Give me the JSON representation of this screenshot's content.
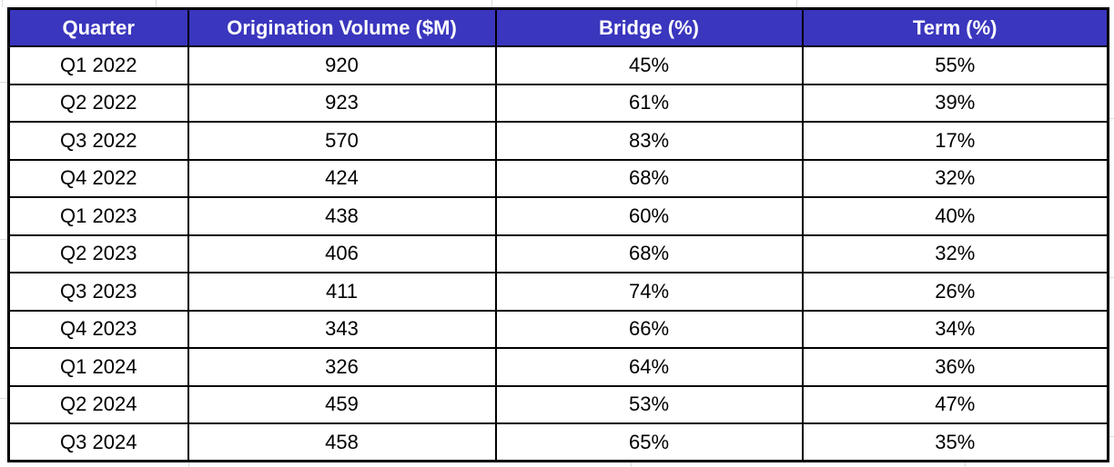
{
  "colors": {
    "header_bg": "#3A36BE",
    "header_text": "#FFFFFF",
    "body_bg": "#FFFFFF",
    "body_text": "#000000",
    "table_border": "#000000",
    "margin_gridline": "#DCDCDC"
  },
  "chart_data": {
    "type": "table",
    "columns": [
      "Quarter",
      "Origination Volume ($M)",
      "Bridge (%)",
      "Term (%)"
    ],
    "column_keys": [
      "quarter",
      "volume",
      "bridge",
      "term"
    ],
    "rows": [
      [
        "Q1 2022",
        "920",
        "45%",
        "55%"
      ],
      [
        "Q2 2022",
        "923",
        "61%",
        "39%"
      ],
      [
        "Q3 2022",
        "570",
        "83%",
        "17%"
      ],
      [
        "Q4 2022",
        "424",
        "68%",
        "32%"
      ],
      [
        "Q1 2023",
        "438",
        "60%",
        "40%"
      ],
      [
        "Q2 2023",
        "406",
        "68%",
        "32%"
      ],
      [
        "Q3 2023",
        "411",
        "74%",
        "26%"
      ],
      [
        "Q4 2023",
        "343",
        "66%",
        "34%"
      ],
      [
        "Q1 2024",
        "326",
        "64%",
        "36%"
      ],
      [
        "Q2 2024",
        "459",
        "53%",
        "47%"
      ],
      [
        "Q3 2024",
        "458",
        "65%",
        "35%"
      ]
    ],
    "layout": {
      "header_row": true,
      "all_cells_centered": true,
      "grid_borders": "black"
    }
  }
}
